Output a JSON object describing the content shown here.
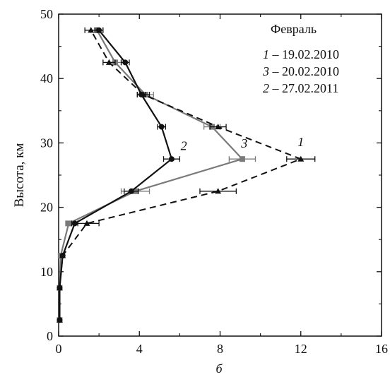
{
  "chart_data": {
    "type": "line",
    "xlim": [
      0,
      16
    ],
    "ylim": [
      0,
      50
    ],
    "xticks": [
      0,
      4,
      8,
      12,
      16
    ],
    "yticks": [
      0,
      10,
      20,
      30,
      40,
      50
    ],
    "ylabel": "Высота, км",
    "panel_label": "б",
    "legend": {
      "title": "Февраль",
      "position": "top-right",
      "entries": [
        {
          "num": "1",
          "text": " – 19.02.2010"
        },
        {
          "num": "3",
          "text": " – 20.02.2010"
        },
        {
          "num": "2",
          "text": " – 27.02.2011"
        }
      ]
    },
    "series": [
      {
        "name": "19.02.2010",
        "label": "1",
        "style": "dashed",
        "color": "#111111",
        "marker": "triangle",
        "points": [
          {
            "x": 0.05,
            "y": 2.5
          },
          {
            "x": 0.05,
            "y": 7.5
          },
          {
            "x": 0.2,
            "y": 12.5
          },
          {
            "x": 1.4,
            "y": 17.5,
            "xerr": 0.6
          },
          {
            "x": 7.9,
            "y": 22.5,
            "xerr": 0.9
          },
          {
            "x": 12.0,
            "y": 27.5,
            "xerr": 0.7
          },
          {
            "x": 7.9,
            "y": 32.5,
            "xerr": 0.4
          },
          {
            "x": 4.2,
            "y": 37.5,
            "xerr": 0.3
          },
          {
            "x": 2.5,
            "y": 42.5,
            "xerr": 0.3
          },
          {
            "x": 1.6,
            "y": 47.5,
            "xerr": 0.3
          }
        ]
      },
      {
        "name": "20.02.2010",
        "label": "3",
        "style": "solid",
        "color": "#7a7a7a",
        "marker": "square",
        "points": [
          {
            "x": 0.05,
            "y": 2.5
          },
          {
            "x": 0.05,
            "y": 7.5
          },
          {
            "x": 0.1,
            "y": 12.5
          },
          {
            "x": 0.5,
            "y": 17.5,
            "xerr": 0.15
          },
          {
            "x": 3.8,
            "y": 22.5,
            "xerr": 0.7
          },
          {
            "x": 9.1,
            "y": 27.5,
            "xerr": 0.65
          },
          {
            "x": 7.6,
            "y": 32.5,
            "xerr": 0.4
          },
          {
            "x": 4.3,
            "y": 37.5,
            "xerr": 0.4
          },
          {
            "x": 2.8,
            "y": 42.5,
            "xerr": 0.3
          },
          {
            "x": 1.9,
            "y": 47.5,
            "xerr": 0.3
          }
        ]
      },
      {
        "name": "27.02.2011",
        "label": "2",
        "style": "solid",
        "color": "#111111",
        "marker": "circle",
        "points": [
          {
            "x": 0.05,
            "y": 2.5
          },
          {
            "x": 0.05,
            "y": 7.5
          },
          {
            "x": 0.2,
            "y": 12.5
          },
          {
            "x": 0.8,
            "y": 17.5,
            "xerr": 0.15
          },
          {
            "x": 3.6,
            "y": 22.5,
            "xerr": 0.35
          },
          {
            "x": 5.6,
            "y": 27.5,
            "xerr": 0.4
          },
          {
            "x": 5.1,
            "y": 32.5,
            "xerr": 0.2
          },
          {
            "x": 4.1,
            "y": 37.5,
            "xerr": 0.2
          },
          {
            "x": 3.3,
            "y": 42.5,
            "xerr": 0.2
          },
          {
            "x": 2.0,
            "y": 47.5,
            "xerr": 0.2
          }
        ]
      }
    ],
    "annotations": [
      {
        "text": "1",
        "x": 12.0,
        "y": 29.5
      },
      {
        "text": "3",
        "x": 9.2,
        "y": 29.3
      },
      {
        "text": "2",
        "x": 6.2,
        "y": 28.9
      }
    ]
  }
}
